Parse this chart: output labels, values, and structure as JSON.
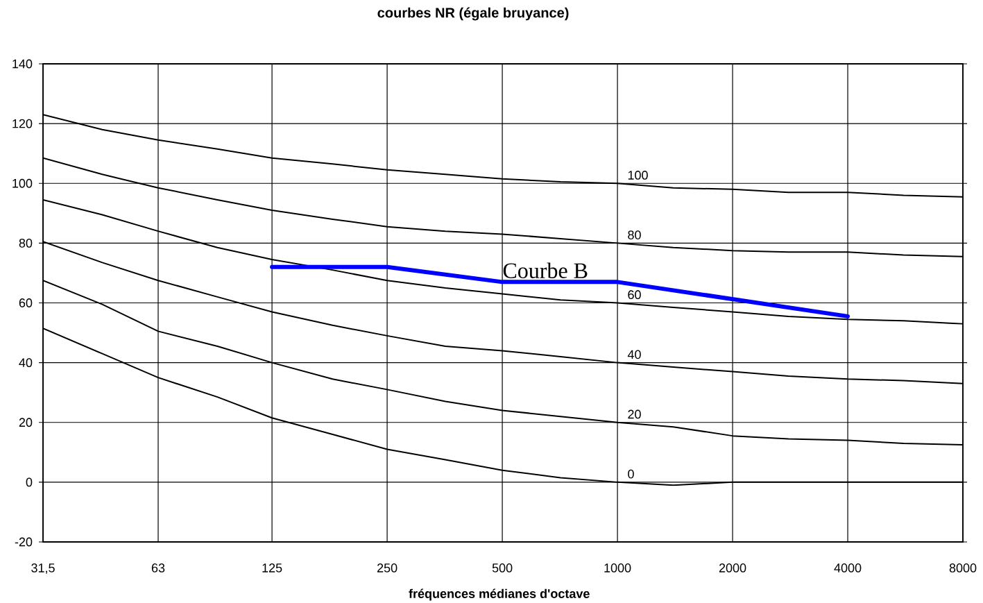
{
  "chart_data": {
    "type": "line",
    "title": "courbes NR (égale bruyance)",
    "xlabel": "fréquences médianes d'octave",
    "x": [
      31.5,
      45,
      63,
      90,
      125,
      180,
      250,
      355,
      500,
      710,
      1000,
      1400,
      2000,
      2800,
      4000,
      5600,
      8000
    ],
    "series": [
      {
        "name": "100",
        "color": "#000000",
        "values": [
          123,
          118,
          114.5,
          111.5,
          108.5,
          106.5,
          104.5,
          103,
          101.5,
          100.5,
          100,
          98.5,
          98,
          97,
          97,
          96,
          95.5
        ]
      },
      {
        "name": "80",
        "color": "#000000",
        "values": [
          108.5,
          103,
          98.5,
          94.5,
          91,
          88,
          85.5,
          84,
          83,
          81.5,
          80,
          78.5,
          77.5,
          77,
          77,
          76,
          75.5
        ]
      },
      {
        "name": "60",
        "color": "#000000",
        "values": [
          94.5,
          89.5,
          84,
          78.5,
          74.5,
          71,
          67.5,
          65,
          63,
          61,
          60,
          58.5,
          57,
          55.5,
          54.5,
          54,
          53
        ]
      },
      {
        "name": "40",
        "color": "#000000",
        "values": [
          80.5,
          73.5,
          67.5,
          62,
          57,
          52.5,
          49,
          45.5,
          44,
          42,
          40,
          38.5,
          37,
          35.5,
          34.5,
          34,
          33
        ]
      },
      {
        "name": "20",
        "color": "#000000",
        "values": [
          67.5,
          59.5,
          50.5,
          45.5,
          40,
          34.5,
          31,
          27,
          24,
          22,
          20,
          18.5,
          15.5,
          14.5,
          14,
          13,
          12.5
        ]
      },
      {
        "name": "0",
        "color": "#000000",
        "values": [
          51.5,
          43,
          35,
          28.5,
          21.5,
          16,
          11,
          7.5,
          4,
          1.5,
          0,
          -1,
          0,
          0,
          0,
          0,
          0
        ]
      },
      {
        "name": "Courbe B",
        "color": "#0000ff",
        "x": [
          125,
          250,
          500,
          1000,
          4000
        ],
        "values": [
          72,
          72,
          67,
          67,
          55.5
        ]
      }
    ],
    "log": "x",
    "xlim": [
      31.5,
      8000
    ],
    "xticks": [
      {
        "value": 31.5,
        "label": "31,5"
      },
      63,
      125,
      250,
      500,
      1000,
      2000,
      4000,
      8000
    ],
    "ylim": [
      -20,
      140
    ],
    "yticks": [
      -20,
      0,
      20,
      40,
      60,
      80,
      100,
      120,
      140
    ],
    "grid": true,
    "legend": false,
    "marker": "none",
    "line_style": "solid"
  }
}
